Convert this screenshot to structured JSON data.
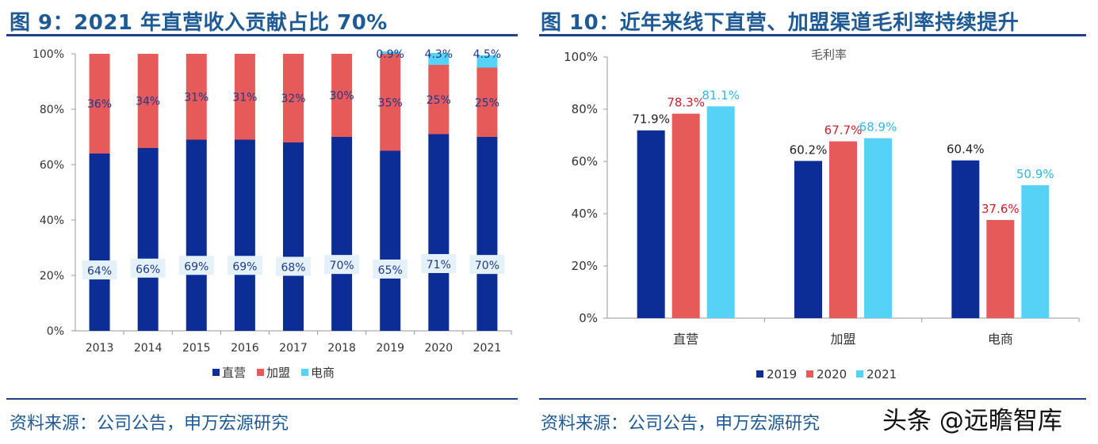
{
  "left_panel": {
    "title": "图 9：2021 年直营收入贡献占比 70%",
    "source": "资料来源：公司公告，申万宏源研究"
  },
  "right_panel": {
    "title": "图 10：近年来线下直营、加盟渠道毛利率持续提升",
    "source": "资料来源：公司公告，申万宏源研究"
  },
  "watermark": "头条 @远瞻智库",
  "chart_data": [
    {
      "type": "stacked-bar",
      "title": "",
      "categories": [
        "2013",
        "2014",
        "2015",
        "2016",
        "2017",
        "2018",
        "2019",
        "2020",
        "2021"
      ],
      "series": [
        {
          "name": "直营",
          "color": "#0b2d95",
          "values": [
            64,
            66,
            69,
            69,
            68,
            70,
            65,
            71,
            70
          ],
          "labels": [
            "64%",
            "66%",
            "69%",
            "69%",
            "68%",
            "70%",
            "65%",
            "71%",
            "70%"
          ]
        },
        {
          "name": "加盟",
          "color": "#e65a5a",
          "values": [
            36,
            34,
            31,
            31,
            32,
            30,
            35,
            25,
            25
          ],
          "labels": [
            "36%",
            "34%",
            "31%",
            "31%",
            "32%",
            "30%",
            "35%",
            "25%",
            "25%"
          ]
        },
        {
          "name": "电商",
          "color": "#55d2f5",
          "values": [
            0,
            0,
            0,
            0,
            0,
            0,
            0.9,
            4.3,
            4.5
          ],
          "labels": [
            "",
            "",
            "",
            "",
            "",
            "",
            "0.9%",
            "4.3%",
            "4.5%"
          ]
        }
      ],
      "ylim": [
        0,
        100
      ],
      "yticks": [
        "0%",
        "20%",
        "40%",
        "60%",
        "80%",
        "100%"
      ],
      "legend_position": "bottom"
    },
    {
      "type": "bar",
      "title": "毛利率",
      "categories": [
        "直营",
        "加盟",
        "电商"
      ],
      "series": [
        {
          "name": "2019",
          "color": "#0b2d95",
          "label_color": "#222222",
          "values": [
            71.9,
            60.2,
            60.4
          ],
          "labels": [
            "71.9%",
            "60.2%",
            "60.4%"
          ]
        },
        {
          "name": "2020",
          "color": "#e65a5a",
          "label_color": "#c8202a",
          "values": [
            78.3,
            67.7,
            37.6
          ],
          "labels": [
            "78.3%",
            "67.7%",
            "37.6%"
          ]
        },
        {
          "name": "2021",
          "color": "#55d2f5",
          "label_color": "#2fb6ea",
          "values": [
            81.1,
            68.9,
            50.9
          ],
          "labels": [
            "81.1%",
            "68.9%",
            "50.9%"
          ]
        }
      ],
      "ylim": [
        0,
        100
      ],
      "yticks": [
        "0%",
        "20%",
        "40%",
        "60%",
        "80%",
        "100%"
      ],
      "legend_position": "bottom"
    }
  ]
}
